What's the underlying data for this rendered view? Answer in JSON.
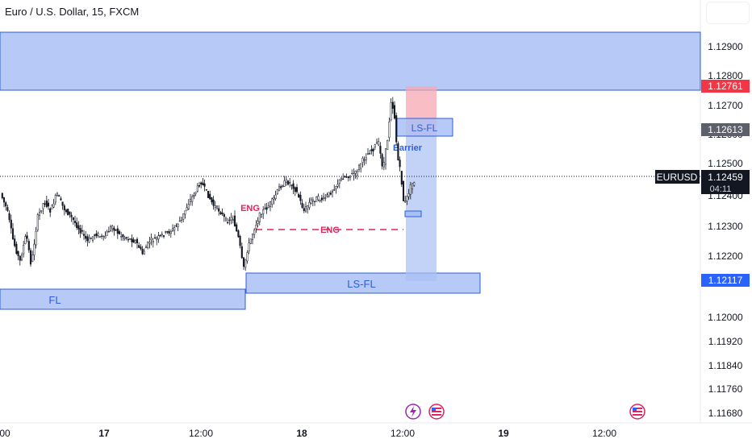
{
  "title": "Euro / U.S. Dollar, 15, FXCM",
  "chart_data": {
    "type": "candlestick",
    "y_axis": {
      "ticks": [
        "1.12900",
        "1.12800",
        "1.12700",
        "1.12600",
        "1.12500",
        "1.12400",
        "1.12300",
        "1.12200",
        "1.12000",
        "1.11920",
        "1.11840",
        "1.11760",
        "1.11680"
      ],
      "range": [
        1.1164,
        1.1299
      ]
    },
    "x_axis": {
      "ticks": [
        "00",
        "17",
        "12:00",
        "18",
        "12:00",
        "19",
        "12:00"
      ]
    },
    "price_labels": {
      "high_level": "1.12761",
      "mid_level": "1.12613",
      "current": "1.12459",
      "symbol": "EURUSD",
      "countdown": "04:11",
      "low_level": "1.12117"
    },
    "annotations": {
      "eng_upper": "ENG",
      "eng_line": "ENG",
      "barrier": "Barrier",
      "fl": "FL",
      "ls_fl_low": "LS-FL",
      "ls_fl_high": "LS-FL"
    },
    "colors": {
      "zone_fill": "#aac0f5",
      "zone_border": "#2e5fd6",
      "candle": "#131722",
      "eng": "#e0245e",
      "red_tag": "#f23645",
      "dark_tag": "#131722",
      "blue_tag": "#2962ff",
      "short_stop": "#f7a8b2",
      "short_target": "#aac0f5"
    },
    "icons": [
      "lightning-icon",
      "us-flag-icon",
      "us-flag-icon"
    ]
  }
}
